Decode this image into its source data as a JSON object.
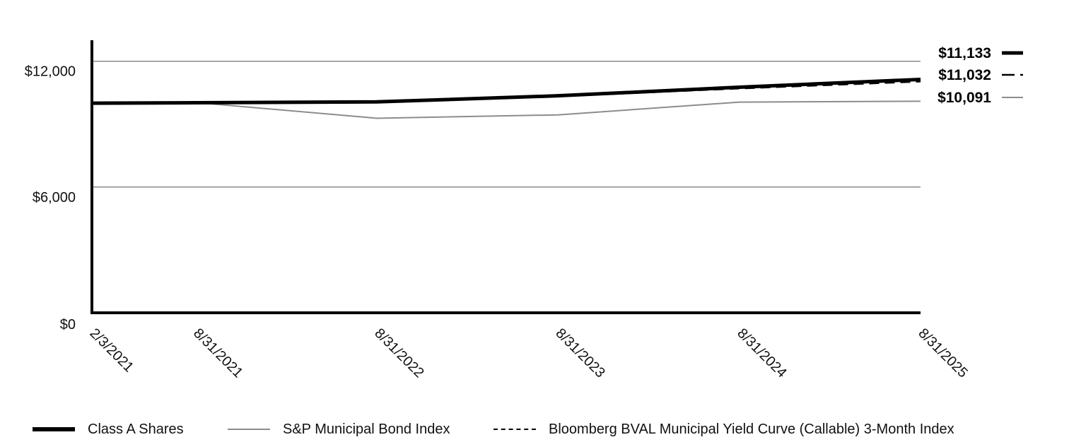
{
  "chart_data": {
    "type": "line",
    "x": [
      "2/3/2021",
      "8/31/2021",
      "8/31/2022",
      "8/31/2023",
      "8/31/2024",
      "8/31/2025"
    ],
    "ylim": [
      0,
      13000
    ],
    "yticks": [
      "$0",
      "$6,000",
      "$12,000"
    ],
    "ytick_values": [
      0,
      6000,
      12000
    ],
    "grid": true,
    "legend_position": "bottom",
    "series": [
      {
        "name": "Class A Shares",
        "values": [
          10000,
          10020,
          10060,
          10350,
          10760,
          11133
        ],
        "end_label": "$11,133",
        "color": "#000000",
        "style": "solid-thick"
      },
      {
        "name": "S&P Municipal Bond Index",
        "values": [
          10000,
          10030,
          9280,
          9440,
          10050,
          10091
        ],
        "end_label": "$10,091",
        "color": "#8c8c8c",
        "style": "solid-thin"
      },
      {
        "name": "Bloomberg BVAL Municipal Yield Curve (Callable) 3-Month Index",
        "values": [
          10000,
          10020,
          10050,
          10330,
          10700,
          11032
        ],
        "end_label": "$11,032",
        "color": "#000000",
        "style": "dashed"
      }
    ]
  }
}
